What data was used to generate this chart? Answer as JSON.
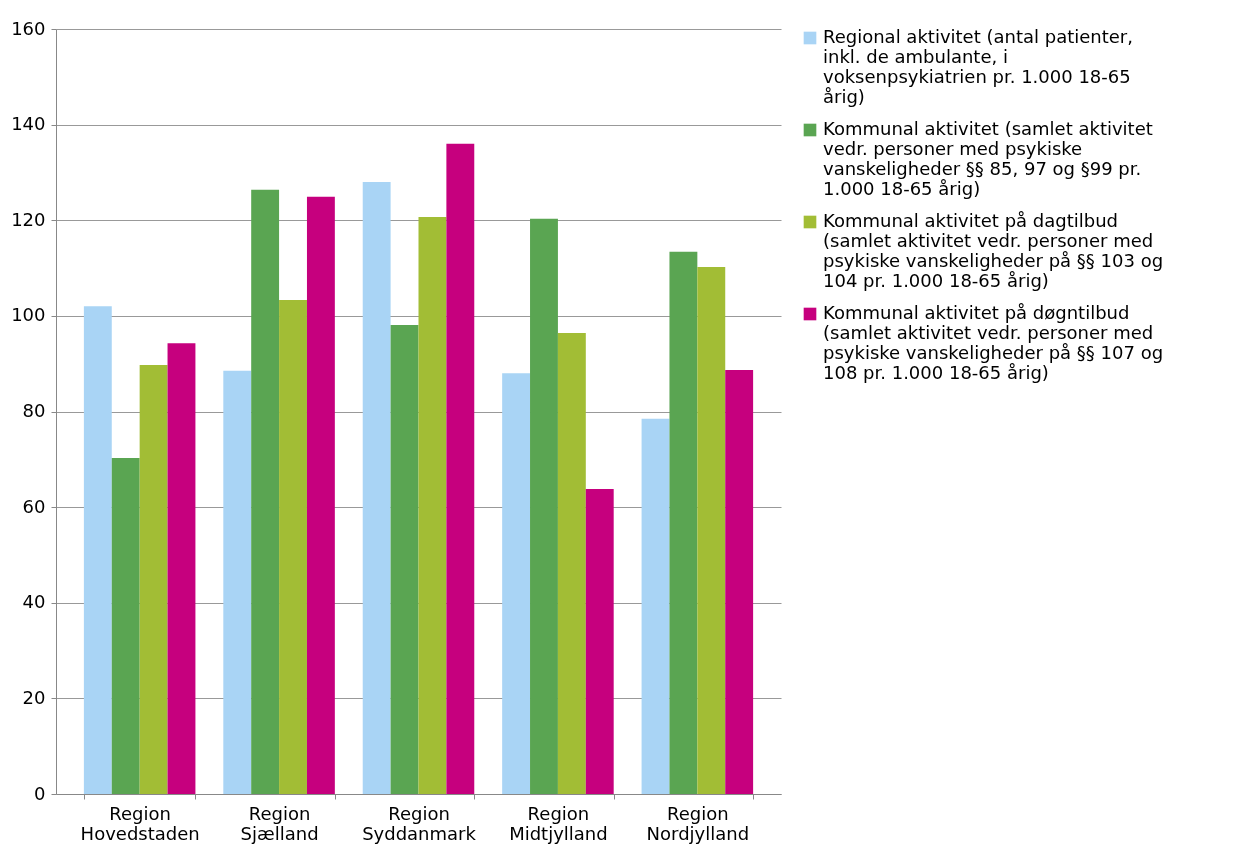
{
  "chart_data": {
    "type": "bar",
    "categories": [
      "Region Hovedstaden",
      "Region Sjælland",
      "Region Syddanmark",
      "Region Midtjylland",
      "Region Nordjylland"
    ],
    "series": [
      {
        "name": "Regional aktivitet (antal patienter, inkl. de ambulante, i voksenpsykiatrien pr. 1.000 18-65 årig)",
        "color": "#a9d4f5",
        "values": [
          102,
          88.5,
          128,
          88,
          78.5
        ]
      },
      {
        "name": "Kommunal aktivitet (samlet aktivitet vedr. personer med psykiske vanskeligheder §§ 85, 97 og §99 pr. 1.000 18-65 årig)",
        "color": "#5aa552",
        "values": [
          70.3,
          126.4,
          98.1,
          120.3,
          113.4
        ]
      },
      {
        "name": "Kommunal aktivitet på dagtilbud (samlet aktivitet vedr. personer med psykiske vanskeligheder på §§ 103 og 104 pr. 1.000 18-65 årig)",
        "color": "#a2bd35",
        "values": [
          89.7,
          103.3,
          120.7,
          96.4,
          110.2
        ]
      },
      {
        "name": "Kommunal aktivitet på døgntilbud (samlet aktivitet vedr. personer med psykiske vanskeligheder på §§ 107 og 108 pr. 1.000 18-65 årig)",
        "color": "#c6007e",
        "values": [
          94.3,
          124.9,
          136,
          63.8,
          88.7
        ]
      }
    ],
    "ylim": [
      0,
      160
    ],
    "yticks": [
      0,
      20,
      40,
      60,
      80,
      100,
      120,
      140,
      160
    ],
    "grid": "y",
    "legend": "right"
  }
}
